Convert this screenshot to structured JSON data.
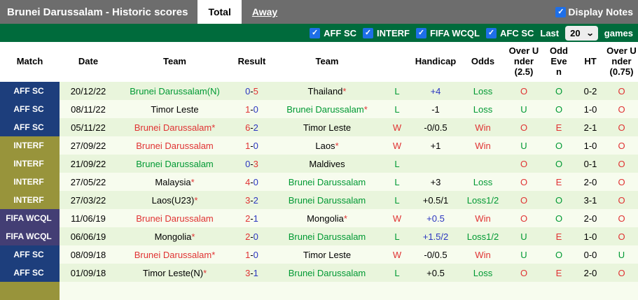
{
  "title_bar": {
    "title": "Brunei Darussalam - Historic scores",
    "tabs": [
      {
        "label": "Total",
        "active": true
      },
      {
        "label": "Away",
        "active": false
      }
    ],
    "display_notes": {
      "label": "Display Notes",
      "checked": true
    }
  },
  "filter_bar": {
    "competitions": [
      {
        "label": "AFF SC",
        "checked": true
      },
      {
        "label": "INTERF",
        "checked": true
      },
      {
        "label": "FIFA WCQL",
        "checked": true
      },
      {
        "label": "AFC SC",
        "checked": true
      }
    ],
    "last_label": "Last",
    "games_count": "20",
    "games_label": "games",
    "check_glyph": "✓",
    "caret_glyph": "⌄"
  },
  "table": {
    "headers": [
      "Match",
      "Date",
      "Team",
      "Result",
      "Team",
      "",
      "Handicap",
      "Odds",
      "Over Under (2.5)",
      "Odd Even",
      "HT",
      "Over Under (0.75)"
    ],
    "rows": [
      {
        "competition": "AFF SC",
        "date": "20/12/22",
        "team1": {
          "name": "Brunei Darussalam(N)",
          "color": "green",
          "star": false
        },
        "result": {
          "home": "0",
          "home_color": "blue",
          "away": "5",
          "away_color": "red"
        },
        "team2": {
          "name": "Thailand",
          "color": "black",
          "star": true
        },
        "wl": {
          "text": "L",
          "color": "green"
        },
        "handicap": {
          "text": "+4",
          "color": "blue"
        },
        "odds": {
          "text": "Loss",
          "color": "green"
        },
        "over_under_25": {
          "text": "O",
          "color": "red"
        },
        "odd_even": {
          "text": "O",
          "color": "green"
        },
        "ht": "0-2",
        "over_under_075": {
          "text": "O",
          "color": "red"
        }
      },
      {
        "competition": "AFF SC",
        "date": "08/11/22",
        "team1": {
          "name": "Timor Leste",
          "color": "black",
          "star": false
        },
        "result": {
          "home": "1",
          "home_color": "red",
          "away": "0",
          "away_color": "blue"
        },
        "team2": {
          "name": "Brunei Darussalam",
          "color": "green",
          "star": true
        },
        "wl": {
          "text": "L",
          "color": "green"
        },
        "handicap": {
          "text": "-1",
          "color": "black"
        },
        "odds": {
          "text": "Loss",
          "color": "green"
        },
        "over_under_25": {
          "text": "U",
          "color": "green"
        },
        "odd_even": {
          "text": "O",
          "color": "green"
        },
        "ht": "1-0",
        "over_under_075": {
          "text": "O",
          "color": "red"
        }
      },
      {
        "competition": "AFF SC",
        "date": "05/11/22",
        "team1": {
          "name": "Brunei Darussalam",
          "color": "red",
          "star": true
        },
        "result": {
          "home": "6",
          "home_color": "red",
          "away": "2",
          "away_color": "blue"
        },
        "team2": {
          "name": "Timor Leste",
          "color": "black",
          "star": false
        },
        "wl": {
          "text": "W",
          "color": "red"
        },
        "handicap": {
          "text": "-0/0.5",
          "color": "black"
        },
        "odds": {
          "text": "Win",
          "color": "red"
        },
        "over_under_25": {
          "text": "O",
          "color": "red"
        },
        "odd_even": {
          "text": "E",
          "color": "red"
        },
        "ht": "2-1",
        "over_under_075": {
          "text": "O",
          "color": "red"
        }
      },
      {
        "competition": "INTERF",
        "date": "27/09/22",
        "team1": {
          "name": "Brunei Darussalam",
          "color": "red",
          "star": false
        },
        "result": {
          "home": "1",
          "home_color": "red",
          "away": "0",
          "away_color": "blue"
        },
        "team2": {
          "name": "Laos",
          "color": "black",
          "star": true
        },
        "wl": {
          "text": "W",
          "color": "red"
        },
        "handicap": {
          "text": "+1",
          "color": "black"
        },
        "odds": {
          "text": "Win",
          "color": "red"
        },
        "over_under_25": {
          "text": "U",
          "color": "green"
        },
        "odd_even": {
          "text": "O",
          "color": "green"
        },
        "ht": "1-0",
        "over_under_075": {
          "text": "O",
          "color": "red"
        }
      },
      {
        "competition": "INTERF",
        "date": "21/09/22",
        "team1": {
          "name": "Brunei Darussalam",
          "color": "green",
          "star": false
        },
        "result": {
          "home": "0",
          "home_color": "blue",
          "away": "3",
          "away_color": "red"
        },
        "team2": {
          "name": "Maldives",
          "color": "black",
          "star": false
        },
        "wl": {
          "text": "L",
          "color": "green"
        },
        "handicap": {
          "text": "",
          "color": "black"
        },
        "odds": {
          "text": "",
          "color": "black"
        },
        "over_under_25": {
          "text": "O",
          "color": "red"
        },
        "odd_even": {
          "text": "O",
          "color": "green"
        },
        "ht": "0-1",
        "over_under_075": {
          "text": "O",
          "color": "red"
        }
      },
      {
        "competition": "INTERF",
        "date": "27/05/22",
        "team1": {
          "name": "Malaysia",
          "color": "black",
          "star": true
        },
        "result": {
          "home": "4",
          "home_color": "red",
          "away": "0",
          "away_color": "blue"
        },
        "team2": {
          "name": "Brunei Darussalam",
          "color": "green",
          "star": false
        },
        "wl": {
          "text": "L",
          "color": "green"
        },
        "handicap": {
          "text": "+3",
          "color": "black"
        },
        "odds": {
          "text": "Loss",
          "color": "green"
        },
        "over_under_25": {
          "text": "O",
          "color": "red"
        },
        "odd_even": {
          "text": "E",
          "color": "red"
        },
        "ht": "2-0",
        "over_under_075": {
          "text": "O",
          "color": "red"
        }
      },
      {
        "competition": "INTERF",
        "date": "27/03/22",
        "team1": {
          "name": "Laos(U23)",
          "color": "black",
          "star": true
        },
        "result": {
          "home": "3",
          "home_color": "red",
          "away": "2",
          "away_color": "blue"
        },
        "team2": {
          "name": "Brunei Darussalam",
          "color": "green",
          "star": false
        },
        "wl": {
          "text": "L",
          "color": "green"
        },
        "handicap": {
          "text": "+0.5/1",
          "color": "black"
        },
        "odds": {
          "text": "Loss1/2",
          "color": "green"
        },
        "over_under_25": {
          "text": "O",
          "color": "red"
        },
        "odd_even": {
          "text": "O",
          "color": "green"
        },
        "ht": "3-1",
        "over_under_075": {
          "text": "O",
          "color": "red"
        }
      },
      {
        "competition": "FIFA WCQL",
        "date": "11/06/19",
        "team1": {
          "name": "Brunei Darussalam",
          "color": "red",
          "star": false
        },
        "result": {
          "home": "2",
          "home_color": "red",
          "away": "1",
          "away_color": "blue"
        },
        "team2": {
          "name": "Mongolia",
          "color": "black",
          "star": true
        },
        "wl": {
          "text": "W",
          "color": "red"
        },
        "handicap": {
          "text": "+0.5",
          "color": "blue"
        },
        "odds": {
          "text": "Win",
          "color": "red"
        },
        "over_under_25": {
          "text": "O",
          "color": "red"
        },
        "odd_even": {
          "text": "O",
          "color": "green"
        },
        "ht": "2-0",
        "over_under_075": {
          "text": "O",
          "color": "red"
        }
      },
      {
        "competition": "FIFA WCQL",
        "date": "06/06/19",
        "team1": {
          "name": "Mongolia",
          "color": "black",
          "star": true
        },
        "result": {
          "home": "2",
          "home_color": "red",
          "away": "0",
          "away_color": "blue"
        },
        "team2": {
          "name": "Brunei Darussalam",
          "color": "green",
          "star": false
        },
        "wl": {
          "text": "L",
          "color": "green"
        },
        "handicap": {
          "text": "+1.5/2",
          "color": "blue"
        },
        "odds": {
          "text": "Loss1/2",
          "color": "green"
        },
        "over_under_25": {
          "text": "U",
          "color": "green"
        },
        "odd_even": {
          "text": "E",
          "color": "red"
        },
        "ht": "1-0",
        "over_under_075": {
          "text": "O",
          "color": "red"
        }
      },
      {
        "competition": "AFF SC",
        "date": "08/09/18",
        "team1": {
          "name": "Brunei Darussalam",
          "color": "red",
          "star": true
        },
        "result": {
          "home": "1",
          "home_color": "red",
          "away": "0",
          "away_color": "blue"
        },
        "team2": {
          "name": "Timor Leste",
          "color": "black",
          "star": false
        },
        "wl": {
          "text": "W",
          "color": "red"
        },
        "handicap": {
          "text": "-0/0.5",
          "color": "black"
        },
        "odds": {
          "text": "Win",
          "color": "red"
        },
        "over_under_25": {
          "text": "U",
          "color": "green"
        },
        "odd_even": {
          "text": "O",
          "color": "green"
        },
        "ht": "0-0",
        "over_under_075": {
          "text": "U",
          "color": "green"
        }
      },
      {
        "competition": "AFF SC",
        "date": "01/09/18",
        "team1": {
          "name": "Timor Leste(N)",
          "color": "black",
          "star": true
        },
        "result": {
          "home": "3",
          "home_color": "red",
          "away": "1",
          "away_color": "blue"
        },
        "team2": {
          "name": "Brunei Darussalam",
          "color": "green",
          "star": false
        },
        "wl": {
          "text": "L",
          "color": "green"
        },
        "handicap": {
          "text": "+0.5",
          "color": "black"
        },
        "odds": {
          "text": "Loss",
          "color": "green"
        },
        "over_under_25": {
          "text": "O",
          "color": "red"
        },
        "odd_even": {
          "text": "E",
          "color": "red"
        },
        "ht": "2-0",
        "over_under_075": {
          "text": "O",
          "color": "red"
        }
      }
    ],
    "partial_row": {
      "badge_color": "#98943b"
    }
  },
  "colors": {
    "topbar_bg": "#6d6d6d",
    "filterbar_bg": "#006b3c",
    "checkbox_blue": "#1e6fe8",
    "row_odd_bg": "#e9f5dc",
    "row_even_bg": "#f7fcee",
    "badges": {
      "AFF SC": "#1d3e7c",
      "INTERF": "#98943b",
      "FIFA WCQL": "#433e74"
    },
    "text": {
      "green": "#009933",
      "red": "#e03333",
      "blue": "#2a35c0",
      "black": "#000000"
    }
  }
}
